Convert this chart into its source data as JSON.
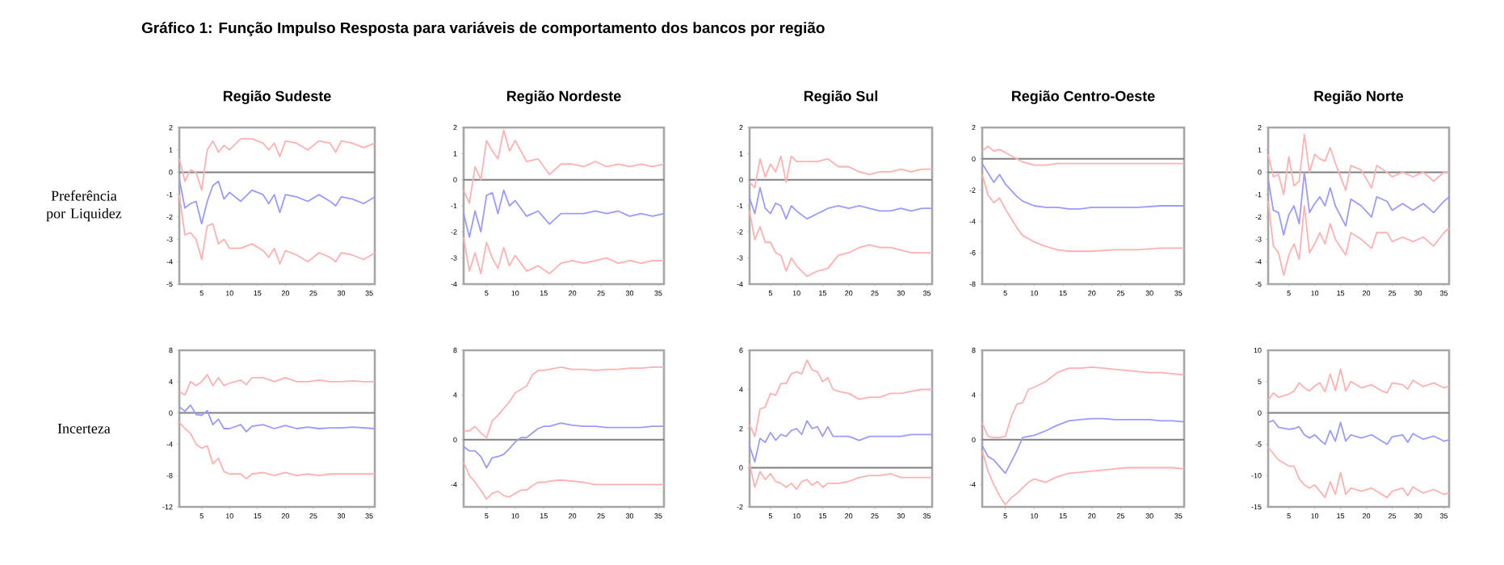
{
  "chart_data": [
    {
      "type": "line",
      "title": "Região Sudeste",
      "ylabel": "Preferência por Liquidez",
      "annotations": [
        "Gráfico 1: Função Impulso Resposta para variáveis de comportamento dos bancos por região"
      ],
      "x": [
        1,
        2,
        3,
        4,
        5,
        6,
        7,
        8,
        9,
        10,
        12,
        14,
        16,
        17,
        18,
        19,
        20,
        22,
        24,
        26,
        28,
        29,
        30,
        32,
        34,
        36
      ],
      "xlim": [
        1,
        36
      ],
      "xticks": [
        5,
        10,
        15,
        20,
        25,
        30,
        35
      ],
      "ylim": [
        -5,
        2
      ],
      "yticks": [
        -5,
        -4,
        -3,
        -2,
        -1,
        0,
        1,
        2
      ],
      "ref_lines": [
        {
          "axis": "y",
          "value": 0,
          "color": "#808080"
        }
      ],
      "series": [
        {
          "color": "#ffb0b0",
          "values": [
            0.6,
            -0.4,
            0.1,
            0,
            -0.8,
            1.0,
            1.4,
            0.9,
            1.2,
            1.0,
            1.5,
            1.5,
            1.3,
            1.0,
            1.3,
            0.7,
            1.4,
            1.3,
            1.0,
            1.4,
            1.3,
            0.9,
            1.4,
            1.3,
            1.1,
            1.3
          ]
        },
        {
          "color": "#9a9aff",
          "values": [
            -0.3,
            -1.6,
            -1.4,
            -1.3,
            -2.3,
            -1.3,
            -0.6,
            -0.4,
            -1.2,
            -0.9,
            -1.3,
            -0.8,
            -1.0,
            -1.4,
            -1.0,
            -1.8,
            -1.0,
            -1.1,
            -1.3,
            -1.0,
            -1.3,
            -1.5,
            -1.1,
            -1.2,
            -1.4,
            -1.1
          ]
        },
        {
          "color": "#ffb0b0",
          "values": [
            -1.0,
            -2.8,
            -2.7,
            -3.0,
            -3.9,
            -2.4,
            -2.3,
            -3.2,
            -3.0,
            -3.4,
            -3.4,
            -3.2,
            -3.5,
            -3.8,
            -3.4,
            -4.1,
            -3.5,
            -3.7,
            -4.0,
            -3.6,
            -3.8,
            -4.0,
            -3.6,
            -3.7,
            -3.9,
            -3.6
          ]
        }
      ]
    },
    {
      "type": "line",
      "title": "Região Nordeste",
      "x": [
        1,
        2,
        3,
        4,
        5,
        6,
        7,
        8,
        9,
        10,
        12,
        14,
        16,
        18,
        20,
        22,
        24,
        26,
        28,
        30,
        32,
        34,
        36
      ],
      "xlim": [
        1,
        36
      ],
      "xticks": [
        5,
        10,
        15,
        20,
        25,
        30,
        35
      ],
      "ylim": [
        -4,
        2
      ],
      "yticks": [
        -4,
        -3,
        -2,
        -1,
        0,
        1,
        2
      ],
      "ref_lines": [
        {
          "axis": "y",
          "value": 0,
          "color": "#808080"
        }
      ],
      "series": [
        {
          "color": "#ffb0b0",
          "values": [
            -0.4,
            -0.9,
            0.5,
            0,
            1.5,
            1.1,
            0.8,
            1.9,
            1.1,
            1.5,
            0.7,
            0.8,
            0.2,
            0.6,
            0.6,
            0.5,
            0.7,
            0.5,
            0.6,
            0.5,
            0.6,
            0.5,
            0.6
          ]
        },
        {
          "color": "#9a9aff",
          "values": [
            -1.3,
            -2.2,
            -1.2,
            -2.0,
            -0.6,
            -0.5,
            -1.3,
            -0.4,
            -1.0,
            -0.8,
            -1.4,
            -1.2,
            -1.7,
            -1.3,
            -1.3,
            -1.3,
            -1.2,
            -1.3,
            -1.2,
            -1.4,
            -1.3,
            -1.4,
            -1.3
          ]
        },
        {
          "color": "#ffb0b0",
          "values": [
            -2.2,
            -3.5,
            -2.8,
            -3.6,
            -2.4,
            -3.0,
            -3.4,
            -2.6,
            -3.3,
            -2.9,
            -3.5,
            -3.3,
            -3.6,
            -3.2,
            -3.1,
            -3.2,
            -3.1,
            -3.0,
            -3.2,
            -3.1,
            -3.2,
            -3.1,
            -3.1
          ]
        }
      ]
    },
    {
      "type": "line",
      "title": "Região Sul",
      "x": [
        1,
        2,
        3,
        4,
        5,
        6,
        7,
        8,
        9,
        10,
        12,
        14,
        16,
        18,
        20,
        22,
        24,
        26,
        28,
        30,
        32,
        34,
        36
      ],
      "xlim": [
        1,
        36
      ],
      "xticks": [
        5,
        10,
        15,
        20,
        25,
        30,
        35
      ],
      "ylim": [
        -4,
        2
      ],
      "yticks": [
        -4,
        -3,
        -2,
        -1,
        0,
        1,
        2
      ],
      "ref_lines": [
        {
          "axis": "y",
          "value": 0,
          "color": "#808080"
        }
      ],
      "series": [
        {
          "color": "#ffb0b0",
          "values": [
            -0.1,
            -0.3,
            0.8,
            0.1,
            0.6,
            0.3,
            0.9,
            -0.1,
            0.9,
            0.7,
            0.7,
            0.7,
            0.8,
            0.5,
            0.5,
            0.3,
            0.2,
            0.3,
            0.3,
            0.4,
            0.3,
            0.4,
            0.4
          ]
        },
        {
          "color": "#9a9aff",
          "values": [
            -0.7,
            -1.3,
            -0.3,
            -1.1,
            -1.3,
            -0.9,
            -1.0,
            -1.5,
            -1.0,
            -1.2,
            -1.5,
            -1.3,
            -1.1,
            -1.0,
            -1.1,
            -1.0,
            -1.1,
            -1.2,
            -1.2,
            -1.1,
            -1.2,
            -1.1,
            -1.1
          ]
        },
        {
          "color": "#ffb0b0",
          "values": [
            -1.2,
            -2.3,
            -1.8,
            -2.4,
            -2.4,
            -2.8,
            -2.9,
            -3.5,
            -3.0,
            -3.3,
            -3.7,
            -3.5,
            -3.4,
            -2.9,
            -2.8,
            -2.6,
            -2.5,
            -2.6,
            -2.6,
            -2.7,
            -2.8,
            -2.8,
            -2.8
          ]
        }
      ]
    },
    {
      "type": "line",
      "title": "Região Centro-Oeste",
      "x": [
        1,
        2,
        3,
        4,
        5,
        6,
        7,
        8,
        10,
        12,
        14,
        16,
        18,
        20,
        24,
        28,
        32,
        36
      ],
      "xlim": [
        1,
        36
      ],
      "xticks": [
        5,
        10,
        15,
        20,
        25,
        30,
        35
      ],
      "ylim": [
        -8,
        2
      ],
      "yticks": [
        -8,
        -6,
        -4,
        -2,
        0,
        2
      ],
      "ref_lines": [
        {
          "axis": "y",
          "value": 0,
          "color": "#808080"
        }
      ],
      "series": [
        {
          "color": "#ffb0b0",
          "values": [
            0.5,
            0.8,
            0.5,
            0.6,
            0.4,
            0.2,
            0.0,
            -0.2,
            -0.4,
            -0.4,
            -0.3,
            -0.3,
            -0.3,
            -0.3,
            -0.3,
            -0.3,
            -0.3,
            -0.3
          ]
        },
        {
          "color": "#9a9aff",
          "values": [
            -0.3,
            -0.9,
            -1.5,
            -1.0,
            -1.6,
            -2.0,
            -2.4,
            -2.7,
            -3.0,
            -3.1,
            -3.1,
            -3.2,
            -3.2,
            -3.1,
            -3.1,
            -3.1,
            -3.0,
            -3.0
          ]
        },
        {
          "color": "#ffb0b0",
          "values": [
            -1.0,
            -2.3,
            -2.8,
            -2.5,
            -3.2,
            -3.8,
            -4.4,
            -4.9,
            -5.3,
            -5.6,
            -5.8,
            -5.9,
            -5.9,
            -5.9,
            -5.8,
            -5.8,
            -5.7,
            -5.7
          ]
        }
      ]
    },
    {
      "type": "line",
      "title": "Região Norte",
      "x": [
        1,
        2,
        3,
        4,
        5,
        6,
        7,
        8,
        9,
        10,
        11,
        12,
        13,
        14,
        16,
        17,
        19,
        21,
        22,
        24,
        25,
        27,
        29,
        31,
        33,
        35,
        36
      ],
      "xlim": [
        1,
        36
      ],
      "xticks": [
        5,
        10,
        15,
        20,
        25,
        30,
        35
      ],
      "ylim": [
        -5,
        2
      ],
      "yticks": [
        -5,
        -4,
        -3,
        -2,
        -1,
        0,
        1,
        2
      ],
      "ref_lines": [
        {
          "axis": "y",
          "value": 0,
          "color": "#808080"
        }
      ],
      "series": [
        {
          "color": "#ffb0b0",
          "values": [
            0.8,
            -0.2,
            -0.1,
            -1.0,
            0.7,
            -0.6,
            -0.4,
            1.7,
            0.0,
            0.8,
            0.6,
            0.5,
            1.1,
            0.4,
            -0.8,
            0.3,
            0.1,
            -0.7,
            0.3,
            0.0,
            -0.2,
            0.0,
            -0.2,
            0.0,
            -0.4,
            0.0,
            0.0
          ]
        },
        {
          "color": "#9a9aff",
          "values": [
            -0.3,
            -1.7,
            -1.8,
            -2.8,
            -1.9,
            -1.5,
            -2.3,
            0.0,
            -1.8,
            -1.4,
            -1.1,
            -1.5,
            -0.7,
            -1.5,
            -2.4,
            -1.2,
            -1.5,
            -2.0,
            -1.1,
            -1.3,
            -1.7,
            -1.4,
            -1.7,
            -1.4,
            -1.8,
            -1.3,
            -1.1
          ]
        },
        {
          "color": "#ffb0b0",
          "values": [
            -1.3,
            -3.3,
            -3.6,
            -4.6,
            -3.7,
            -3.2,
            -3.9,
            -1.5,
            -3.6,
            -3.2,
            -2.7,
            -3.2,
            -2.3,
            -3.0,
            -3.7,
            -2.7,
            -3.0,
            -3.4,
            -2.7,
            -2.7,
            -3.1,
            -2.9,
            -3.1,
            -2.9,
            -3.3,
            -2.7,
            -2.5
          ]
        }
      ]
    },
    {
      "type": "line",
      "ylabel": "Incerteza",
      "x": [
        1,
        2,
        3,
        4,
        5,
        6,
        7,
        8,
        9,
        10,
        12,
        13,
        14,
        16,
        18,
        20,
        22,
        24,
        26,
        28,
        30,
        32,
        34,
        36
      ],
      "xlim": [
        1,
        36
      ],
      "xticks": [
        5,
        10,
        15,
        20,
        25,
        30,
        35
      ],
      "ylim": [
        -12,
        8
      ],
      "yticks": [
        -12,
        -8,
        -4,
        0,
        4,
        8
      ],
      "ref_lines": [
        {
          "axis": "y",
          "value": 0,
          "color": "#808080"
        }
      ],
      "series": [
        {
          "color": "#ffb0b0",
          "values": [
            2.7,
            2.3,
            4.0,
            3.5,
            4.0,
            4.9,
            3.5,
            4.5,
            3.5,
            3.8,
            4.2,
            3.6,
            4.5,
            4.5,
            4.0,
            4.5,
            4.0,
            4.0,
            4.2,
            4.0,
            4.0,
            4.1,
            4.0,
            4.0
          ]
        },
        {
          "color": "#9a9aff",
          "values": [
            0.8,
            0.2,
            1.0,
            -0.2,
            -0.3,
            0.3,
            -1.5,
            -0.8,
            -2.0,
            -2.0,
            -1.5,
            -2.4,
            -1.7,
            -1.5,
            -2.0,
            -1.6,
            -2.0,
            -1.8,
            -2.0,
            -1.9,
            -1.9,
            -1.8,
            -1.9,
            -2.0
          ]
        },
        {
          "color": "#ffb0b0",
          "values": [
            -1.2,
            -2.0,
            -2.6,
            -4.0,
            -4.5,
            -4.2,
            -6.5,
            -5.8,
            -7.5,
            -7.8,
            -7.8,
            -8.4,
            -7.8,
            -7.6,
            -8.0,
            -7.6,
            -8.0,
            -7.8,
            -8.0,
            -7.8,
            -7.8,
            -7.8,
            -7.8,
            -7.8
          ]
        }
      ]
    },
    {
      "type": "line",
      "x": [
        1,
        2,
        3,
        4,
        5,
        6,
        7,
        8,
        9,
        10,
        11,
        12,
        13,
        14,
        15,
        16,
        18,
        20,
        22,
        24,
        26,
        28,
        30,
        32,
        34,
        36
      ],
      "xlim": [
        1,
        36
      ],
      "xticks": [
        5,
        10,
        15,
        20,
        25,
        30,
        35
      ],
      "ylim": [
        -6,
        8
      ],
      "yticks": [
        -4,
        0,
        4,
        8
      ],
      "ref_lines": [
        {
          "axis": "y",
          "value": 0,
          "color": "#808080"
        }
      ],
      "series": [
        {
          "color": "#ffb0b0",
          "values": [
            0.8,
            0.8,
            1.2,
            0.6,
            0.2,
            1.7,
            2.2,
            2.8,
            3.4,
            4.2,
            4.5,
            4.8,
            5.8,
            6.2,
            6.2,
            6.3,
            6.5,
            6.3,
            6.3,
            6.2,
            6.3,
            6.3,
            6.4,
            6.4,
            6.5,
            6.5
          ]
        },
        {
          "color": "#9a9aff",
          "values": [
            -0.6,
            -1.0,
            -1.0,
            -1.5,
            -2.5,
            -1.6,
            -1.5,
            -1.3,
            -0.8,
            -0.2,
            0.2,
            0.2,
            0.6,
            1.0,
            1.2,
            1.2,
            1.5,
            1.3,
            1.2,
            1.2,
            1.1,
            1.1,
            1.1,
            1.1,
            1.2,
            1.2
          ]
        },
        {
          "color": "#ffb0b0",
          "values": [
            -2.0,
            -3.2,
            -3.8,
            -4.5,
            -5.3,
            -4.8,
            -4.6,
            -5.0,
            -5.1,
            -4.8,
            -4.5,
            -4.5,
            -4.1,
            -3.8,
            -3.8,
            -3.7,
            -3.6,
            -3.7,
            -3.8,
            -4.0,
            -4.0,
            -4.0,
            -4.0,
            -4.0,
            -4.0,
            -4.0
          ]
        }
      ]
    },
    {
      "type": "line",
      "x": [
        1,
        2,
        3,
        4,
        5,
        6,
        7,
        8,
        9,
        10,
        11,
        12,
        13,
        14,
        15,
        16,
        17,
        18,
        20,
        22,
        24,
        26,
        28,
        30,
        32,
        34,
        36
      ],
      "xlim": [
        1,
        36
      ],
      "xticks": [
        5,
        10,
        15,
        20,
        25,
        30,
        35
      ],
      "ylim": [
        -2,
        6
      ],
      "yticks": [
        -2,
        0,
        2,
        4,
        6
      ],
      "ref_lines": [
        {
          "axis": "y",
          "value": 0,
          "color": "#808080"
        }
      ],
      "series": [
        {
          "color": "#ffb0b0",
          "values": [
            2.2,
            1.6,
            3.0,
            3.1,
            3.8,
            3.7,
            4.3,
            4.3,
            4.8,
            4.9,
            4.8,
            5.5,
            5.0,
            4.9,
            4.4,
            4.6,
            4.0,
            3.9,
            3.8,
            3.5,
            3.6,
            3.6,
            3.8,
            3.8,
            3.9,
            4.0,
            4.0
          ]
        },
        {
          "color": "#9a9aff",
          "values": [
            1.1,
            0.3,
            1.5,
            1.3,
            1.8,
            1.4,
            1.7,
            1.6,
            1.9,
            2.0,
            1.7,
            2.4,
            2.0,
            2.1,
            1.6,
            2.1,
            1.6,
            1.6,
            1.6,
            1.4,
            1.6,
            1.6,
            1.6,
            1.6,
            1.7,
            1.7,
            1.7
          ]
        },
        {
          "color": "#ffb0b0",
          "values": [
            0.2,
            -1.0,
            -0.2,
            -0.6,
            -0.3,
            -0.7,
            -0.8,
            -1.0,
            -0.8,
            -1.1,
            -0.7,
            -0.6,
            -0.9,
            -0.7,
            -1.0,
            -0.8,
            -0.8,
            -0.8,
            -0.7,
            -0.5,
            -0.4,
            -0.4,
            -0.3,
            -0.5,
            -0.5,
            -0.5,
            -0.5
          ]
        }
      ]
    },
    {
      "type": "line",
      "x": [
        1,
        2,
        3,
        4,
        5,
        6,
        7,
        8,
        9,
        10,
        12,
        14,
        16,
        18,
        20,
        22,
        24,
        26,
        28,
        30,
        32,
        34,
        36
      ],
      "xlim": [
        1,
        36
      ],
      "xticks": [
        5,
        10,
        15,
        20,
        25,
        30,
        35
      ],
      "ylim": [
        -6,
        8
      ],
      "yticks": [
        -4,
        0,
        4,
        8
      ],
      "ref_lines": [
        {
          "axis": "y",
          "value": 0,
          "color": "#808080"
        }
      ],
      "series": [
        {
          "color": "#ffb0b0",
          "values": [
            1.5,
            0.3,
            0.2,
            0.2,
            0.3,
            2.0,
            3.2,
            3.3,
            4.5,
            4.7,
            5.2,
            6.0,
            6.4,
            6.4,
            6.5,
            6.4,
            6.3,
            6.2,
            6.1,
            6.0,
            6.0,
            5.9,
            5.8
          ]
        },
        {
          "color": "#9a9aff",
          "values": [
            -0.5,
            -1.5,
            -1.8,
            -2.4,
            -3.0,
            -2.0,
            -1.0,
            0.2,
            0.3,
            0.4,
            0.8,
            1.3,
            1.7,
            1.8,
            1.9,
            1.9,
            1.8,
            1.8,
            1.8,
            1.8,
            1.7,
            1.7,
            1.6
          ]
        },
        {
          "color": "#ffb0b0",
          "values": [
            -1.0,
            -2.8,
            -4.0,
            -5.0,
            -5.8,
            -5.2,
            -4.8,
            -4.3,
            -3.8,
            -3.5,
            -3.8,
            -3.3,
            -3.0,
            -2.9,
            -2.8,
            -2.7,
            -2.6,
            -2.5,
            -2.5,
            -2.5,
            -2.5,
            -2.5,
            -2.6
          ]
        }
      ]
    },
    {
      "type": "line",
      "x": [
        1,
        2,
        3,
        5,
        6,
        7,
        8,
        9,
        10,
        11,
        12,
        13,
        14,
        15,
        16,
        17,
        19,
        21,
        23,
        24,
        25,
        27,
        28,
        29,
        31,
        33,
        35,
        36
      ],
      "xlim": [
        1,
        36
      ],
      "xticks": [
        5,
        10,
        15,
        20,
        25,
        30,
        35
      ],
      "ylim": [
        -15,
        10
      ],
      "yticks": [
        -15,
        -10,
        -5,
        0,
        5,
        10
      ],
      "ref_lines": [
        {
          "axis": "y",
          "value": 0,
          "color": "#808080"
        }
      ],
      "series": [
        {
          "color": "#ffb0b0",
          "values": [
            2.0,
            3.2,
            2.5,
            3.0,
            3.5,
            4.8,
            4.0,
            3.5,
            4.3,
            4.8,
            3.4,
            6.2,
            3.6,
            7.0,
            3.5,
            5.0,
            4.0,
            4.5,
            3.5,
            3.2,
            4.8,
            4.5,
            3.8,
            5.2,
            4.2,
            4.8,
            4.0,
            4.3
          ]
        },
        {
          "color": "#9a9aff",
          "values": [
            -1.5,
            -1.2,
            -2.3,
            -2.6,
            -2.5,
            -2.2,
            -3.5,
            -4.0,
            -3.5,
            -4.3,
            -5.0,
            -2.8,
            -4.5,
            -1.5,
            -4.5,
            -3.5,
            -4.0,
            -3.5,
            -4.5,
            -5.0,
            -3.8,
            -3.5,
            -4.7,
            -3.3,
            -4.2,
            -3.7,
            -4.5,
            -4.3
          ]
        },
        {
          "color": "#ffb0b0",
          "values": [
            -5.5,
            -6.5,
            -7.5,
            -8.5,
            -8.5,
            -10.5,
            -11.5,
            -12.0,
            -11.5,
            -12.5,
            -13.5,
            -11.0,
            -13.0,
            -9.5,
            -13.0,
            -12.0,
            -12.5,
            -12.0,
            -13.0,
            -13.5,
            -12.5,
            -12.0,
            -13.2,
            -11.8,
            -12.8,
            -12.2,
            -13.0,
            -12.8
          ]
        }
      ]
    }
  ]
}
